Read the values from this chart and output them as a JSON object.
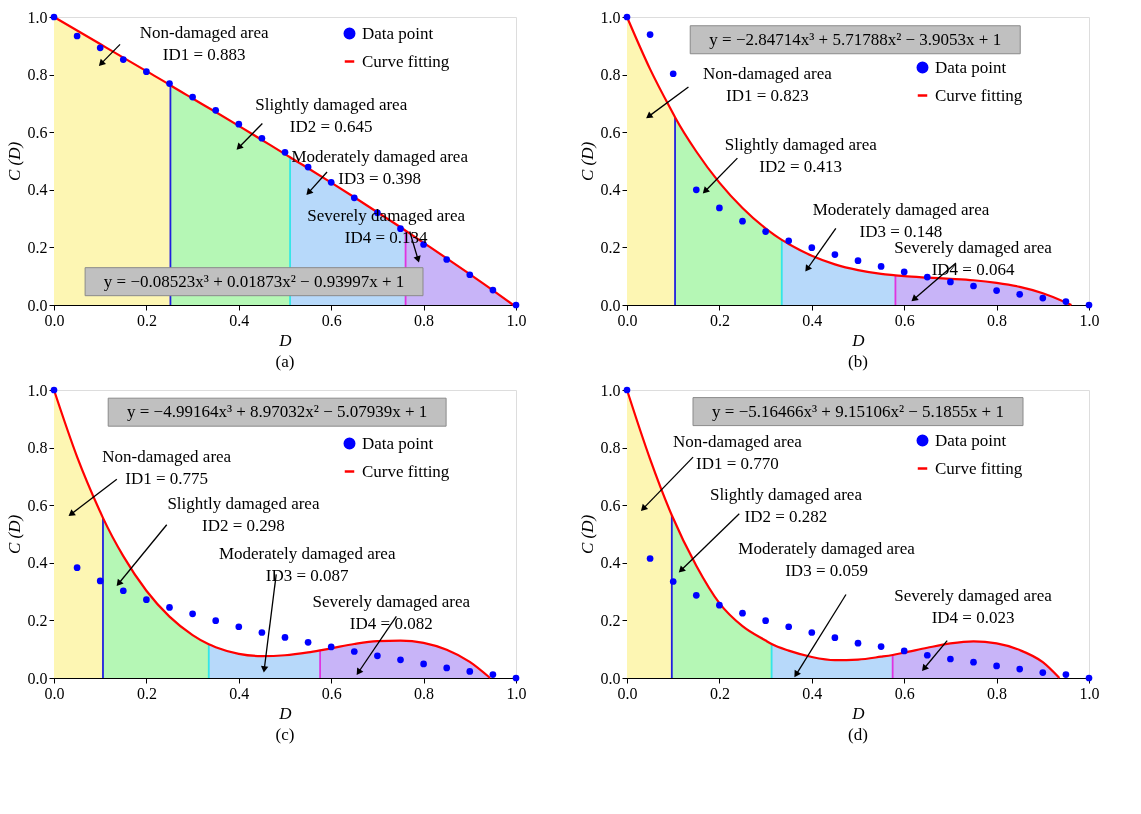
{
  "chart_data": [
    {
      "type": "scatter",
      "title": "(a)",
      "xlabel": "D",
      "ylabel": "C (D)",
      "xlim": [
        0,
        1
      ],
      "ylim": [
        0,
        1
      ],
      "xticks": [
        {
          "value": 0,
          "label": "0.0"
        },
        {
          "value": 0.2,
          "label": "0.2"
        },
        {
          "value": 0.4,
          "label": "0.4"
        },
        {
          "value": 0.6,
          "label": "0.6"
        },
        {
          "value": 0.8,
          "label": "0.8"
        },
        {
          "value": 1,
          "label": "1.0"
        }
      ],
      "yticks": [
        {
          "value": 0,
          "label": "0.0"
        },
        {
          "value": 0.2,
          "label": "0.2"
        },
        {
          "value": 0.4,
          "label": "0.4"
        },
        {
          "value": 0.6,
          "label": "0.6"
        },
        {
          "value": 0.8,
          "label": "0.8"
        },
        {
          "value": 1,
          "label": "1.0"
        }
      ],
      "legend": "top right",
      "series": [
        {
          "type": "area",
          "color": "#fdf6b3",
          "x": [
            0,
            0.05,
            0.1,
            0.15,
            0.2,
            0.25,
            0.252
          ],
          "values": [
            1,
            0.953,
            0.906,
            0.859,
            0.812,
            0.765,
            0.763
          ]
        },
        {
          "type": "area",
          "color": "#b5f7b5",
          "x": [
            0.252,
            0.3,
            0.35,
            0.4,
            0.45,
            0.5,
            0.511
          ],
          "values": [
            0.763,
            0.717,
            0.67,
            0.622,
            0.573,
            0.524,
            0.513
          ]
        },
        {
          "type": "area",
          "color": "#b7d9fa",
          "x": [
            0.511,
            0.55,
            0.6,
            0.65,
            0.7,
            0.75,
            0.761
          ],
          "values": [
            0.513,
            0.475,
            0.425,
            0.374,
            0.322,
            0.27,
            0.258
          ]
        },
        {
          "type": "area",
          "color": "#c8b4f8",
          "x": [
            0.761,
            0.8,
            0.85,
            0.9,
            0.95,
            0.994
          ],
          "values": [
            0.258,
            0.216,
            0.162,
            0.107,
            0.051,
            0
          ]
        },
        {
          "name": "Data point",
          "marker": "circle",
          "color": "#0000ff",
          "x": [
            0,
            0.05,
            0.1,
            0.15,
            0.2,
            0.25,
            0.3,
            0.35,
            0.4,
            0.45,
            0.5,
            0.55,
            0.6,
            0.65,
            0.7,
            0.75,
            0.8,
            0.85,
            0.9,
            0.95,
            1.0
          ],
          "values": [
            1,
            0.934,
            0.893,
            0.852,
            0.81,
            0.769,
            0.722,
            0.676,
            0.628,
            0.579,
            0.53,
            0.479,
            0.426,
            0.372,
            0.32,
            0.265,
            0.21,
            0.158,
            0.105,
            0.052,
            0
          ]
        },
        {
          "name": "Curve fitting",
          "type": "line",
          "marker": "none",
          "color": "#ff0000",
          "x": [
            0,
            0.05,
            0.1,
            0.15,
            0.2,
            0.25,
            0.252,
            0.3,
            0.35,
            0.4,
            0.45,
            0.5,
            0.511,
            0.55,
            0.6,
            0.65,
            0.7,
            0.75,
            0.761,
            0.8,
            0.85,
            0.9,
            0.95,
            0.994
          ],
          "values": [
            1,
            0.953,
            0.906,
            0.859,
            0.812,
            0.765,
            0.763,
            0.717,
            0.67,
            0.622,
            0.573,
            0.524,
            0.513,
            0.475,
            0.425,
            0.374,
            0.322,
            0.27,
            0.258,
            0.216,
            0.162,
            0.107,
            0.051,
            0
          ]
        }
      ],
      "ref_lines": [
        {
          "axis": "x",
          "value": 0.252,
          "color": "#2020e0"
        },
        {
          "axis": "x",
          "value": 0.511,
          "color": "#33e6e6"
        },
        {
          "axis": "x",
          "value": 0.761,
          "color": "#e033e0"
        }
      ],
      "annotations": [
        "y = −0.08523x³ + 0.01873x² − 0.93997x + 1",
        {
          "text": "Non-damaged area\nID1 = 0.883",
          "x": 0.102,
          "y": 0.838
        },
        {
          "text": "Slightly damaged area\nID2 = 0.645",
          "x": 0.4,
          "y": 0.547
        },
        {
          "text": "Moderately damaged area\nID3 = 0.398",
          "x": 0.551,
          "y": 0.39
        },
        {
          "text": "Severely damaged area\nID4 = 0.134",
          "x": 0.788,
          "y": 0.158
        }
      ]
    },
    {
      "type": "scatter",
      "title": "(b)",
      "xlabel": "D",
      "ylabel": "C (D)",
      "xlim": [
        0,
        1
      ],
      "ylim": [
        0,
        1
      ],
      "xticks": [
        {
          "value": 0,
          "label": "0.0"
        },
        {
          "value": 0.2,
          "label": "0.2"
        },
        {
          "value": 0.4,
          "label": "0.4"
        },
        {
          "value": 0.6,
          "label": "0.6"
        },
        {
          "value": 0.8,
          "label": "0.8"
        },
        {
          "value": 1,
          "label": "1.0"
        }
      ],
      "yticks": [
        {
          "value": 0,
          "label": "0.0"
        },
        {
          "value": 0.2,
          "label": "0.2"
        },
        {
          "value": 0.4,
          "label": "0.4"
        },
        {
          "value": 0.6,
          "label": "0.6"
        },
        {
          "value": 0.8,
          "label": "0.8"
        },
        {
          "value": 1,
          "label": "1.0"
        }
      ],
      "legend": "top right",
      "series": [
        {
          "type": "area",
          "color": "#fdf6b3",
          "x": [
            0,
            0.05,
            0.1,
            0.104
          ],
          "values": [
            1,
            0.819,
            0.664,
            0.652
          ]
        },
        {
          "type": "area",
          "color": "#b5f7b5",
          "x": [
            0.104,
            0.15,
            0.2,
            0.25,
            0.3,
            0.335
          ],
          "values": [
            0.652,
            0.533,
            0.425,
            0.337,
            0.266,
            0.226
          ]
        },
        {
          "type": "area",
          "color": "#b7d9fa",
          "x": [
            0.335,
            0.35,
            0.4,
            0.45,
            0.5,
            0.55,
            0.581
          ],
          "values": [
            0.226,
            0.212,
            0.171,
            0.141,
            0.121,
            0.108,
            0.103
          ]
        },
        {
          "type": "area",
          "color": "#c8b4f8",
          "x": [
            0.581,
            0.6,
            0.65,
            0.7,
            0.75,
            0.8,
            0.85,
            0.9,
            0.95,
            0.962
          ],
          "values": [
            0.103,
            0.1,
            0.095,
            0.091,
            0.086,
            0.077,
            0.063,
            0.041,
            0.009,
            0
          ]
        },
        {
          "name": "Data point",
          "marker": "circle",
          "color": "#0000ff",
          "x": [
            0,
            0.05,
            0.1,
            0.15,
            0.2,
            0.25,
            0.3,
            0.35,
            0.4,
            0.45,
            0.5,
            0.55,
            0.6,
            0.65,
            0.7,
            0.75,
            0.8,
            0.85,
            0.9,
            0.95,
            1.0
          ],
          "values": [
            1,
            0.939,
            0.803,
            0.4,
            0.337,
            0.291,
            0.255,
            0.223,
            0.199,
            0.175,
            0.154,
            0.134,
            0.115,
            0.097,
            0.08,
            0.066,
            0.05,
            0.037,
            0.024,
            0.012,
            0
          ]
        },
        {
          "name": "Curve fitting",
          "type": "line",
          "marker": "none",
          "color": "#ff0000",
          "x": [
            0,
            0.05,
            0.1,
            0.104,
            0.15,
            0.2,
            0.25,
            0.3,
            0.335,
            0.35,
            0.4,
            0.45,
            0.5,
            0.55,
            0.581,
            0.6,
            0.65,
            0.7,
            0.75,
            0.8,
            0.85,
            0.9,
            0.95,
            0.962
          ],
          "values": [
            1,
            0.819,
            0.664,
            0.652,
            0.533,
            0.425,
            0.337,
            0.266,
            0.226,
            0.212,
            0.171,
            0.141,
            0.121,
            0.108,
            0.103,
            0.1,
            0.095,
            0.091,
            0.086,
            0.077,
            0.063,
            0.041,
            0.009,
            0
          ]
        }
      ],
      "ref_lines": [
        {
          "axis": "x",
          "value": 0.104,
          "color": "#2020e0"
        },
        {
          "axis": "x",
          "value": 0.335,
          "color": "#33e6e6"
        },
        {
          "axis": "x",
          "value": 0.581,
          "color": "#e033e0"
        }
      ],
      "annotations": [
        "y = −2.84714x³ + 5.71788x² − 3.9053x + 1",
        "Non-damaged area\nID1 = 0.823",
        {
          "text": "Slightly damaged area\nID2 = 0.413",
          "x": 0.169,
          "y": 0.395
        },
        {
          "text": "Moderately damaged area\nID3 = 0.148",
          "x": 0.39,
          "y": 0.125
        },
        {
          "text": "Severely damaged area\nID4 = 0.064",
          "x": 0.621,
          "y": 0.02
        }
      ]
    },
    {
      "type": "scatter",
      "title": "(c)",
      "xlabel": "D",
      "ylabel": "C (D)",
      "xlim": [
        0,
        1
      ],
      "ylim": [
        0,
        1
      ],
      "xticks": [
        {
          "value": 0,
          "label": "0.0"
        },
        {
          "value": 0.2,
          "label": "0.2"
        },
        {
          "value": 0.4,
          "label": "0.4"
        },
        {
          "value": 0.6,
          "label": "0.6"
        },
        {
          "value": 0.8,
          "label": "0.8"
        },
        {
          "value": 1,
          "label": "1.0"
        }
      ],
      "yticks": [
        {
          "value": 0,
          "label": "0.0"
        },
        {
          "value": 0.2,
          "label": "0.2"
        },
        {
          "value": 0.4,
          "label": "0.4"
        },
        {
          "value": 0.6,
          "label": "0.6"
        },
        {
          "value": 0.8,
          "label": "0.8"
        },
        {
          "value": 1,
          "label": "1.0"
        }
      ],
      "legend": "top right",
      "series": [
        {
          "type": "area",
          "color": "#fdf6b3",
          "x": [
            0,
            0.05,
            0.1,
            0.106
          ],
          "values": [
            1,
            0.768,
            0.577,
            0.556
          ]
        },
        {
          "type": "area",
          "color": "#b5f7b5",
          "x": [
            0.106,
            0.15,
            0.2,
            0.25,
            0.3,
            0.335
          ],
          "values": [
            0.556,
            0.423,
            0.303,
            0.213,
            0.149,
            0.117
          ]
        },
        {
          "type": "area",
          "color": "#b7d9fa",
          "x": [
            0.335,
            0.35,
            0.4,
            0.45,
            0.5,
            0.55,
            0.576
          ],
          "values": [
            0.117,
            0.107,
            0.084,
            0.076,
            0.079,
            0.089,
            0.096
          ]
        },
        {
          "type": "area",
          "color": "#c8b4f8",
          "x": [
            0.576,
            0.6,
            0.65,
            0.7,
            0.75,
            0.8,
            0.85,
            0.9,
            0.944
          ],
          "values": [
            0.096,
            0.103,
            0.118,
            0.128,
            0.13,
            0.122,
            0.098,
            0.056,
            0
          ]
        },
        {
          "name": "Data point",
          "marker": "circle",
          "color": "#0000ff",
          "x": [
            0,
            0.05,
            0.1,
            0.15,
            0.2,
            0.25,
            0.3,
            0.35,
            0.4,
            0.45,
            0.5,
            0.55,
            0.6,
            0.65,
            0.7,
            0.75,
            0.8,
            0.85,
            0.9,
            0.95,
            1.0
          ],
          "values": [
            1,
            0.383,
            0.337,
            0.303,
            0.272,
            0.245,
            0.223,
            0.199,
            0.178,
            0.158,
            0.141,
            0.124,
            0.108,
            0.092,
            0.077,
            0.063,
            0.049,
            0.035,
            0.023,
            0.012,
            0
          ]
        },
        {
          "name": "Curve fitting",
          "type": "line",
          "marker": "none",
          "color": "#ff0000",
          "x": [
            0,
            0.05,
            0.1,
            0.106,
            0.15,
            0.2,
            0.25,
            0.3,
            0.335,
            0.35,
            0.4,
            0.45,
            0.5,
            0.55,
            0.576,
            0.6,
            0.65,
            0.7,
            0.75,
            0.8,
            0.85,
            0.9,
            0.944
          ],
          "values": [
            1,
            0.768,
            0.577,
            0.556,
            0.423,
            0.303,
            0.213,
            0.149,
            0.117,
            0.107,
            0.084,
            0.076,
            0.079,
            0.089,
            0.096,
            0.103,
            0.118,
            0.128,
            0.13,
            0.122,
            0.098,
            0.056,
            0
          ]
        }
      ],
      "ref_lines": [
        {
          "axis": "x",
          "value": 0.106,
          "color": "#2020e0"
        },
        {
          "axis": "x",
          "value": 0.335,
          "color": "#33e6e6"
        },
        {
          "axis": "x",
          "value": 0.576,
          "color": "#e033e0"
        }
      ],
      "annotations": [
        "y = −4.99164x³ + 8.97032x² − 5.07939x + 1",
        {
          "text": "Non-damaged area\nID1 = 0.775",
          "x": 0.037,
          "y": 0.569
        },
        {
          "text": "Slightly damaged area\nID2 = 0.298",
          "x": 0.14,
          "y": 0.328
        },
        {
          "text": "Moderately damaged area\nID3 = 0.087",
          "x": 0.455,
          "y": 0.03
        },
        {
          "text": "Severely damaged area\nID4 = 0.082",
          "x": 0.659,
          "y": 0.02
        }
      ]
    },
    {
      "type": "scatter",
      "title": "(d)",
      "xlabel": "D",
      "ylabel": "C (D)",
      "xlim": [
        0,
        1
      ],
      "ylim": [
        0,
        1
      ],
      "xticks": [
        {
          "value": 0,
          "label": "0.0"
        },
        {
          "value": 0.2,
          "label": "0.2"
        },
        {
          "value": 0.4,
          "label": "0.4"
        },
        {
          "value": 0.6,
          "label": "0.6"
        },
        {
          "value": 0.8,
          "label": "0.8"
        },
        {
          "value": 1,
          "label": "1.0"
        }
      ],
      "yticks": [
        {
          "value": 0,
          "label": "0.0"
        },
        {
          "value": 0.2,
          "label": "0.2"
        },
        {
          "value": 0.4,
          "label": "0.4"
        },
        {
          "value": 0.6,
          "label": "0.6"
        },
        {
          "value": 0.8,
          "label": "0.8"
        },
        {
          "value": 1,
          "label": "1.0"
        }
      ],
      "legend": "top right",
      "series": [
        {
          "type": "area",
          "color": "#fdf6b3",
          "x": [
            0,
            0.05,
            0.097
          ],
          "values": [
            1,
            0.76,
            0.565
          ]
        },
        {
          "type": "area",
          "color": "#b5f7b5",
          "x": [
            0.097,
            0.15,
            0.2,
            0.25,
            0.3,
            0.313
          ],
          "values": [
            0.565,
            0.39,
            0.26,
            0.18,
            0.13,
            0.118
          ]
        },
        {
          "type": "area",
          "color": "#b7d9fa",
          "x": [
            0.313,
            0.35,
            0.4,
            0.45,
            0.5,
            0.55,
            0.575
          ],
          "values": [
            0.118,
            0.095,
            0.073,
            0.062,
            0.064,
            0.074,
            0.08
          ]
        },
        {
          "type": "area",
          "color": "#c8b4f8",
          "x": [
            0.575,
            0.6,
            0.65,
            0.7,
            0.75,
            0.8,
            0.85,
            0.9,
            0.936
          ],
          "values": [
            0.08,
            0.088,
            0.105,
            0.12,
            0.127,
            0.12,
            0.097,
            0.055,
            0
          ]
        },
        {
          "name": "Data point",
          "marker": "circle",
          "color": "#0000ff",
          "x": [
            0,
            0.05,
            0.1,
            0.15,
            0.2,
            0.25,
            0.3,
            0.35,
            0.4,
            0.45,
            0.5,
            0.55,
            0.6,
            0.65,
            0.7,
            0.75,
            0.8,
            0.85,
            0.9,
            0.95,
            1.0
          ],
          "values": [
            1,
            0.415,
            0.335,
            0.287,
            0.253,
            0.225,
            0.199,
            0.178,
            0.158,
            0.14,
            0.121,
            0.109,
            0.094,
            0.079,
            0.066,
            0.055,
            0.042,
            0.031,
            0.019,
            0.012,
            0
          ]
        },
        {
          "name": "Curve fitting",
          "type": "line",
          "marker": "none",
          "color": "#ff0000",
          "x": [
            0,
            0.05,
            0.097,
            0.15,
            0.2,
            0.25,
            0.3,
            0.313,
            0.35,
            0.4,
            0.45,
            0.5,
            0.55,
            0.575,
            0.6,
            0.65,
            0.7,
            0.75,
            0.8,
            0.85,
            0.9,
            0.936
          ],
          "values": [
            1,
            0.76,
            0.565,
            0.39,
            0.26,
            0.18,
            0.13,
            0.118,
            0.095,
            0.073,
            0.062,
            0.064,
            0.074,
            0.08,
            0.088,
            0.105,
            0.12,
            0.127,
            0.12,
            0.097,
            0.055,
            0
          ]
        }
      ],
      "ref_lines": [
        {
          "axis": "x",
          "value": 0.097,
          "color": "#2020e0"
        },
        {
          "axis": "x",
          "value": 0.313,
          "color": "#33e6e6"
        },
        {
          "axis": "x",
          "value": 0.575,
          "color": "#e033e0"
        }
      ],
      "annotations": [
        "y = −5.16466x³ + 9.15106x² − 5.1855x + 1",
        {
          "text": "Non-damaged area\nID1 = 0.770",
          "x": 0.035,
          "y": 0.588
        },
        {
          "text": "Slightly damaged area\nID2 = 0.282",
          "x": 0.117,
          "y": 0.374
        },
        {
          "text": "Moderately damaged area\nID3 = 0.059",
          "x": 0.366,
          "y": 0.012
        },
        {
          "text": "Severely damaged area\nID4 = 0.023",
          "x": 0.643,
          "y": 0.033
        }
      ]
    }
  ]
}
